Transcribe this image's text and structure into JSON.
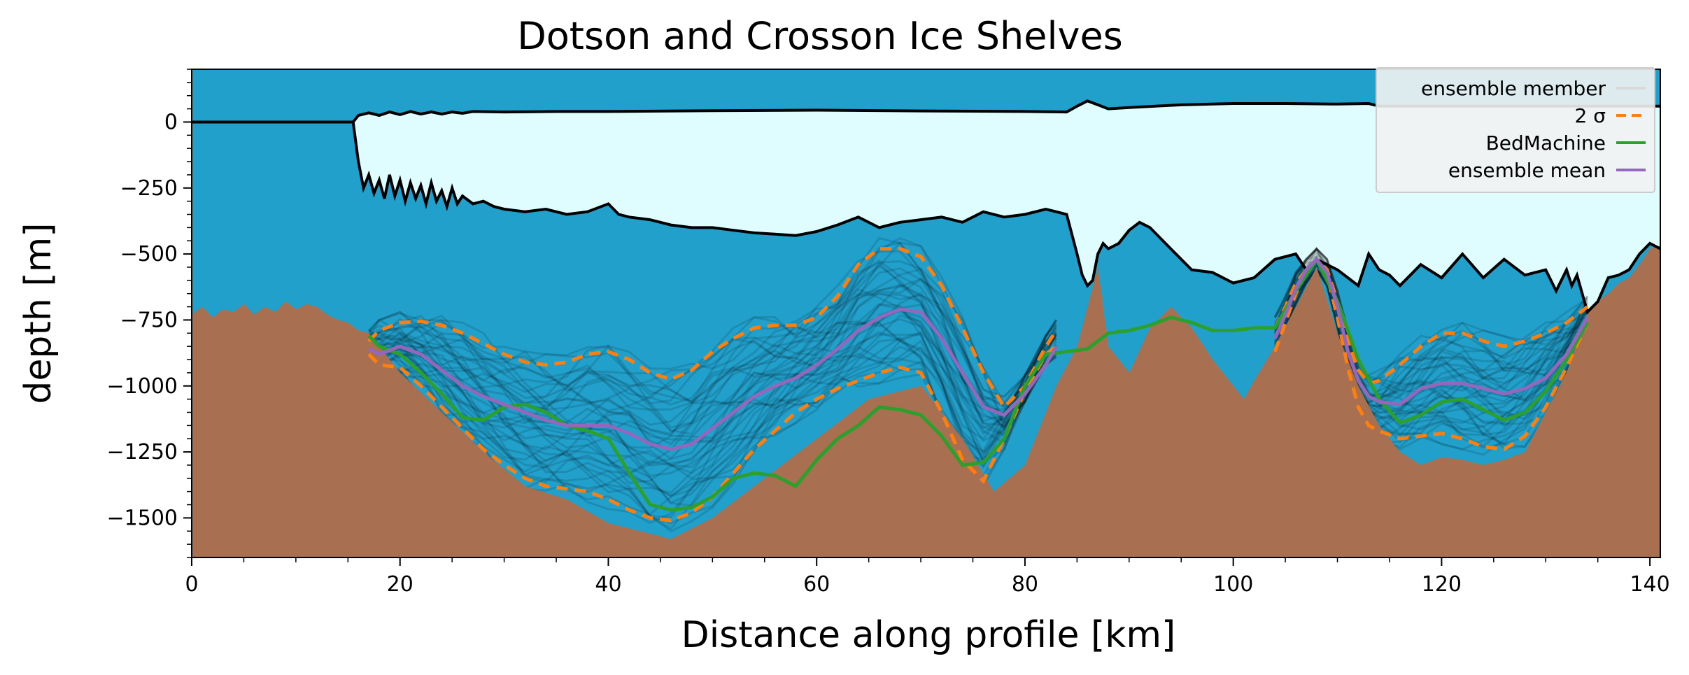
{
  "chart_data": {
    "type": "area",
    "title": "Dotson and Crosson Ice Shelves",
    "xlabel": "Distance along profile [km]",
    "ylabel": "depth [m]",
    "xlim": [
      0,
      141
    ],
    "ylim": [
      -1650,
      200
    ],
    "xticks": [
      0,
      20,
      40,
      60,
      80,
      100,
      120,
      140
    ],
    "yticks": [
      0,
      -250,
      -500,
      -750,
      -1000,
      -1250,
      -1500
    ],
    "xtick_labels": [
      "0",
      "20",
      "40",
      "60",
      "80",
      "100",
      "120",
      "140"
    ],
    "ytick_labels": [
      "0",
      "−250",
      "−500",
      "−750",
      "−1000",
      "−1250",
      "−1500"
    ],
    "grid": false,
    "legend_placement": "top-right",
    "legend": [
      {
        "label": "ensemble member",
        "color": "#d9d9d9",
        "style": "solid"
      },
      {
        "label": "2 σ",
        "color": "#ff7f0e",
        "style": "dashed"
      },
      {
        "label": "BedMachine",
        "color": "#2ca02c",
        "style": "solid"
      },
      {
        "label": "ensemble mean",
        "color": "#9467bd",
        "style": "solid"
      }
    ],
    "colors": {
      "ocean": "#22a0cc",
      "ice": "#dffdff",
      "bed": "#a87050",
      "ice_outline": "#000000",
      "ensemble_member": "#000000",
      "sigma": "#ff7f0e",
      "bedmachine": "#2ca02c",
      "ensemble_mean": "#9467bd"
    },
    "surface": {
      "x": [
        0,
        15.5,
        16,
        17,
        18,
        19,
        20,
        21,
        22,
        23,
        24,
        25,
        26,
        27,
        30,
        35,
        40,
        50,
        60,
        70,
        80,
        84,
        85,
        86,
        87,
        88,
        90,
        95,
        100,
        105,
        110,
        113,
        114,
        141
      ],
      "y": [
        0,
        0,
        25,
        35,
        25,
        38,
        28,
        40,
        30,
        38,
        30,
        38,
        33,
        40,
        38,
        40,
        40,
        43,
        45,
        42,
        40,
        38,
        60,
        80,
        65,
        50,
        55,
        65,
        70,
        70,
        68,
        70,
        60,
        60
      ]
    },
    "ice_base": {
      "x": [
        15.5,
        16,
        16.5,
        17,
        17.5,
        18,
        18.5,
        19,
        19.5,
        20,
        20.5,
        21,
        21.5,
        22,
        22.5,
        23,
        23.5,
        24,
        24.5,
        25,
        25.5,
        26,
        27,
        28,
        29,
        30,
        32,
        34,
        36,
        38,
        40,
        41,
        42,
        44,
        46,
        48,
        50,
        52,
        54,
        56,
        58,
        60,
        62,
        64,
        66,
        68,
        70,
        72,
        74,
        76,
        78,
        80,
        82,
        83,
        84,
        85,
        85.5,
        86,
        86.5,
        87,
        87.5,
        88,
        89,
        90,
        91,
        92,
        94,
        96,
        98,
        100,
        102,
        104,
        106,
        107,
        108,
        110,
        112,
        113,
        114,
        115,
        116,
        118,
        120,
        122,
        124,
        126,
        128,
        130,
        131,
        132,
        132.5,
        133,
        134,
        135,
        136,
        137,
        138,
        139,
        140,
        141
      ],
      "y": [
        0,
        -150,
        -250,
        -200,
        -270,
        -220,
        -290,
        -200,
        -280,
        -220,
        -300,
        -230,
        -290,
        -240,
        -310,
        -230,
        -300,
        -260,
        -320,
        -250,
        -310,
        -280,
        -310,
        -300,
        -320,
        -330,
        -340,
        -330,
        -350,
        -340,
        -310,
        -350,
        -360,
        -370,
        -390,
        -400,
        -400,
        -410,
        -420,
        -425,
        -430,
        -415,
        -390,
        -360,
        -400,
        -380,
        -370,
        -360,
        -380,
        -340,
        -360,
        -350,
        -330,
        -340,
        -350,
        -500,
        -580,
        -620,
        -600,
        -500,
        -460,
        -480,
        -460,
        -410,
        -380,
        -400,
        -480,
        -560,
        -570,
        -610,
        -590,
        -520,
        -500,
        -560,
        -520,
        -560,
        -620,
        -500,
        -560,
        -580,
        -620,
        -540,
        -590,
        -500,
        -590,
        -520,
        -580,
        -560,
        -640,
        -560,
        -620,
        -580,
        -720,
        -680,
        -590,
        -580,
        -560,
        -500,
        -460,
        -480
      ]
    },
    "bed_outside": {
      "x": [
        0,
        1,
        2,
        3,
        4,
        5,
        6,
        7,
        8,
        9,
        10,
        11,
        12,
        13,
        14,
        15,
        16,
        17,
        134,
        135,
        136,
        137,
        138,
        139,
        140,
        141
      ],
      "y": [
        -730,
        -700,
        -740,
        -710,
        -720,
        -690,
        -730,
        -700,
        -720,
        -680,
        -710,
        -690,
        -700,
        -730,
        -750,
        -760,
        -790,
        -800,
        -720,
        -680,
        -650,
        -610,
        -590,
        -540,
        -480,
        -470
      ]
    },
    "bed_lower": {
      "x": [
        17,
        20,
        24,
        28,
        32,
        36,
        40,
        44,
        46,
        50,
        55,
        60,
        65,
        70,
        74,
        77,
        80,
        83,
        85,
        86,
        87,
        88,
        90,
        92,
        94,
        96,
        98,
        100,
        101,
        102,
        104,
        106,
        108,
        110,
        112,
        114,
        116,
        118,
        120,
        122,
        124,
        126,
        128,
        130,
        132,
        134
      ],
      "y": [
        -850,
        -950,
        -1100,
        -1250,
        -1380,
        -1430,
        -1520,
        -1560,
        -1580,
        -1500,
        -1350,
        -1200,
        -1050,
        -1000,
        -1200,
        -1400,
        -1300,
        -1000,
        -850,
        -700,
        -550,
        -850,
        -950,
        -780,
        -700,
        -780,
        -900,
        -1000,
        -1050,
        -980,
        -850,
        -700,
        -550,
        -800,
        -1000,
        -1150,
        -1250,
        -1300,
        -1270,
        -1280,
        -1300,
        -1280,
        -1250,
        -1100,
        -950,
        -750
      ]
    },
    "series": [
      {
        "name": "2 σ",
        "x": [
          17,
          18,
          20,
          22,
          24,
          26,
          28,
          30,
          32,
          34,
          36,
          38,
          40,
          42,
          44,
          46,
          48,
          50,
          52,
          54,
          56,
          58,
          60,
          62,
          64,
          66,
          68,
          70,
          72,
          74,
          76,
          78,
          80,
          82,
          83
        ],
        "values": [
          -830,
          -790,
          -760,
          -755,
          -770,
          -800,
          -840,
          -880,
          -910,
          -920,
          -910,
          -880,
          -870,
          -900,
          -950,
          -975,
          -940,
          -870,
          -820,
          -780,
          -770,
          -770,
          -740,
          -660,
          -540,
          -480,
          -480,
          -510,
          -620,
          -780,
          -950,
          -1080,
          -1000,
          -850,
          -790
        ]
      },
      {
        "name": "2 σ",
        "x": [
          17,
          18,
          20,
          22,
          24,
          26,
          28,
          30,
          32,
          34,
          36,
          38,
          40,
          42,
          44,
          46,
          48,
          50,
          52,
          54,
          56,
          58,
          60,
          62,
          64,
          66,
          68,
          70,
          72,
          74,
          76,
          78,
          80,
          82,
          83
        ],
        "values": [
          -880,
          -920,
          -930,
          -1000,
          -1080,
          -1160,
          -1240,
          -1300,
          -1350,
          -1380,
          -1390,
          -1400,
          -1430,
          -1470,
          -1500,
          -1510,
          -1480,
          -1420,
          -1330,
          -1240,
          -1170,
          -1100,
          -1050,
          -1010,
          -980,
          -950,
          -930,
          -950,
          -1100,
          -1280,
          -1360,
          -1200,
          -1020,
          -880,
          -850
        ]
      },
      {
        "name": "2 σ",
        "x": [
          104,
          105,
          106,
          107,
          108,
          109,
          110,
          111,
          112,
          113,
          114,
          116,
          118,
          120,
          122,
          124,
          126,
          128,
          130,
          132,
          134
        ],
        "values": [
          -780,
          -700,
          -610,
          -560,
          -520,
          -560,
          -680,
          -830,
          -940,
          -990,
          -980,
          -920,
          -850,
          -800,
          -800,
          -830,
          -850,
          -830,
          -800,
          -760,
          -700
        ]
      },
      {
        "name": "2 σ",
        "x": [
          104,
          105,
          106,
          107,
          108,
          109,
          110,
          111,
          112,
          113,
          114,
          116,
          118,
          120,
          122,
          124,
          126,
          128,
          130,
          132,
          134
        ],
        "values": [
          -870,
          -760,
          -650,
          -570,
          -520,
          -580,
          -740,
          -930,
          -1080,
          -1150,
          -1170,
          -1200,
          -1190,
          -1180,
          -1200,
          -1230,
          -1240,
          -1190,
          -1080,
          -930,
          -760
        ]
      },
      {
        "name": "BedMachine",
        "x": [
          17,
          18,
          20,
          22,
          24,
          26,
          28,
          30,
          32,
          34,
          36,
          38,
          40,
          42,
          44,
          46,
          48,
          50,
          52,
          54,
          56,
          58,
          60,
          62,
          64,
          66,
          68,
          70,
          72,
          74,
          76,
          78,
          80,
          82,
          84,
          86,
          88,
          90,
          92,
          94,
          96,
          98,
          100,
          102,
          104,
          106,
          108,
          110,
          112,
          114,
          116,
          118,
          120,
          122,
          124,
          126,
          128,
          130,
          132,
          134
        ],
        "values": [
          -810,
          -850,
          -880,
          -950,
          -1030,
          -1120,
          -1130,
          -1080,
          -1070,
          -1100,
          -1150,
          -1170,
          -1200,
          -1330,
          -1450,
          -1470,
          -1460,
          -1420,
          -1350,
          -1330,
          -1340,
          -1380,
          -1280,
          -1200,
          -1150,
          -1080,
          -1090,
          -1110,
          -1190,
          -1300,
          -1290,
          -1200,
          -1000,
          -880,
          -870,
          -860,
          -800,
          -790,
          -770,
          -740,
          -760,
          -790,
          -790,
          -780,
          -780,
          -640,
          -520,
          -680,
          -900,
          -1050,
          -1140,
          -1110,
          -1060,
          -1050,
          -1090,
          -1130,
          -1100,
          -1020,
          -900,
          -760
        ]
      },
      {
        "name": "ensemble mean",
        "x": [
          17,
          18,
          20,
          22,
          24,
          26,
          28,
          30,
          32,
          34,
          36,
          38,
          40,
          42,
          44,
          46,
          48,
          50,
          52,
          54,
          56,
          58,
          60,
          62,
          64,
          66,
          68,
          70,
          72,
          74,
          76,
          78,
          80,
          82,
          83
        ],
        "values": [
          -860,
          -880,
          -850,
          -880,
          -940,
          -1000,
          -1040,
          -1070,
          -1100,
          -1130,
          -1150,
          -1150,
          -1150,
          -1180,
          -1220,
          -1240,
          -1220,
          -1160,
          -1100,
          -1040,
          -1000,
          -970,
          -920,
          -860,
          -790,
          -740,
          -710,
          -720,
          -820,
          -950,
          -1080,
          -1110,
          -1030,
          -920,
          -850
        ]
      },
      {
        "name": "ensemble mean",
        "x": [
          104,
          105,
          106,
          107,
          108,
          109,
          110,
          111,
          112,
          113,
          114,
          116,
          118,
          120,
          122,
          124,
          126,
          128,
          130,
          132,
          134
        ],
        "values": [
          -820,
          -730,
          -630,
          -560,
          -520,
          -570,
          -700,
          -870,
          -980,
          -1040,
          -1060,
          -1070,
          -1010,
          -990,
          -990,
          -1010,
          -1030,
          -1010,
          -970,
          -880,
          -740
        ]
      }
    ]
  }
}
